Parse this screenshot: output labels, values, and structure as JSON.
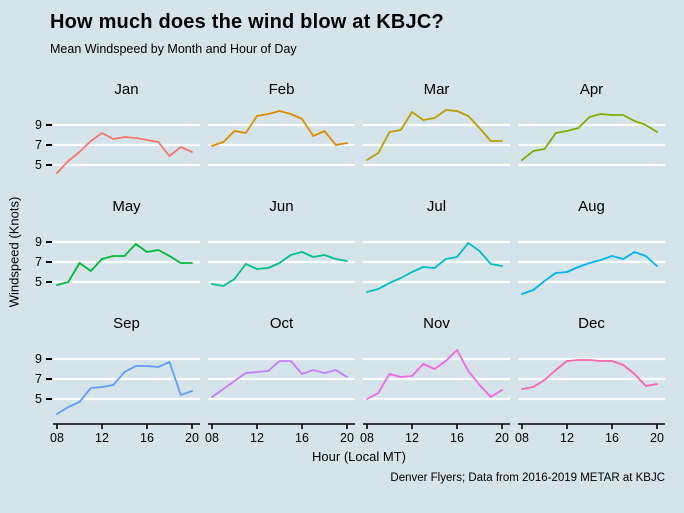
{
  "header": {
    "title": "How much does the wind blow at KBJC?",
    "subtitle": "Mean Windspeed by Month and Hour of Day"
  },
  "caption": "Denver Flyers; Data from 2016-2019 METAR at KBJC",
  "colors": {
    "background": "#d5e4eb",
    "gridline": "#ffffff",
    "axis_line": "#000000",
    "text": "#000000"
  },
  "chart_data": {
    "type": "line",
    "title": "How much does the wind blow at KBJC?",
    "subtitle": "Mean Windspeed by Month and Hour of Day",
    "xlabel": "Hour (Local MT)",
    "ylabel": "Windspeed (Knots)",
    "x": [
      8,
      9,
      10,
      11,
      12,
      13,
      14,
      15,
      16,
      17,
      18,
      19,
      20
    ],
    "x_tick_values": [
      8,
      12,
      16,
      20
    ],
    "x_tick_labels": [
      "08",
      "12",
      "16",
      "20"
    ],
    "y_tick_values": [
      9,
      7,
      5
    ],
    "y_tick_labels": [
      "9",
      "7",
      "5"
    ],
    "y_gridlines": [
      5,
      7,
      9
    ],
    "ylim": [
      3.2,
      10.8
    ],
    "grid": "white horizontal gridlines on light-blue panel, 3x4 facet grid by month",
    "legend": "none (facet titles label each series)",
    "facets": [
      {
        "month": "Jan",
        "color": "#F8766D",
        "values": [
          4.2,
          5.4,
          6.3,
          7.4,
          8.2,
          7.6,
          7.8,
          7.7,
          7.5,
          7.3,
          5.9,
          6.8,
          6.3
        ]
      },
      {
        "month": "Feb",
        "color": "#DE8C00",
        "values": [
          6.9,
          7.3,
          8.4,
          8.2,
          9.9,
          10.1,
          10.4,
          10.1,
          9.6,
          7.9,
          8.4,
          7.0,
          7.2
        ]
      },
      {
        "month": "Mar",
        "color": "#B79F00",
        "values": [
          5.5,
          6.2,
          8.3,
          8.5,
          10.3,
          9.5,
          9.7,
          10.5,
          10.4,
          9.9,
          8.7,
          7.4,
          7.4
        ]
      },
      {
        "month": "Apr",
        "color": "#7CAE00",
        "values": [
          5.5,
          6.4,
          6.6,
          8.2,
          8.4,
          8.7,
          9.8,
          10.1,
          10.0,
          10.0,
          9.4,
          9.0,
          8.3
        ]
      },
      {
        "month": "May",
        "color": "#00BA38",
        "values": [
          4.7,
          5.0,
          6.9,
          6.1,
          7.3,
          7.6,
          7.6,
          8.8,
          8.0,
          8.2,
          7.6,
          6.9,
          6.9
        ]
      },
      {
        "month": "Jun",
        "color": "#00C08B",
        "values": [
          4.8,
          4.6,
          5.3,
          6.8,
          6.3,
          6.4,
          6.9,
          7.7,
          8.0,
          7.5,
          7.7,
          7.3,
          7.1
        ]
      },
      {
        "month": "Jul",
        "color": "#00BFC4",
        "values": [
          4.0,
          4.3,
          4.9,
          5.4,
          6.0,
          6.5,
          6.4,
          7.3,
          7.5,
          8.9,
          8.1,
          6.8,
          6.6
        ]
      },
      {
        "month": "Aug",
        "color": "#00B4F0",
        "values": [
          3.8,
          4.2,
          5.1,
          5.9,
          6.0,
          6.5,
          6.9,
          7.2,
          7.6,
          7.3,
          8.0,
          7.6,
          6.6
        ]
      },
      {
        "month": "Sep",
        "color": "#619CFF",
        "values": [
          3.5,
          4.2,
          4.7,
          6.1,
          6.2,
          6.4,
          7.7,
          8.3,
          8.3,
          8.2,
          8.7,
          5.4,
          5.8
        ]
      },
      {
        "month": "Oct",
        "color": "#C77CFF",
        "values": [
          5.2,
          6.0,
          6.8,
          7.6,
          7.7,
          7.8,
          8.8,
          8.8,
          7.5,
          7.9,
          7.6,
          7.9,
          7.2
        ]
      },
      {
        "month": "Nov",
        "color": "#F564E3",
        "values": [
          5.0,
          5.6,
          7.5,
          7.2,
          7.3,
          8.5,
          8.0,
          8.8,
          9.9,
          7.8,
          6.4,
          5.2,
          5.9
        ]
      },
      {
        "month": "Dec",
        "color": "#FF64B0",
        "values": [
          6.0,
          6.2,
          6.9,
          7.9,
          8.8,
          8.9,
          8.9,
          8.8,
          8.8,
          8.4,
          7.5,
          6.3,
          6.5
        ]
      }
    ]
  }
}
